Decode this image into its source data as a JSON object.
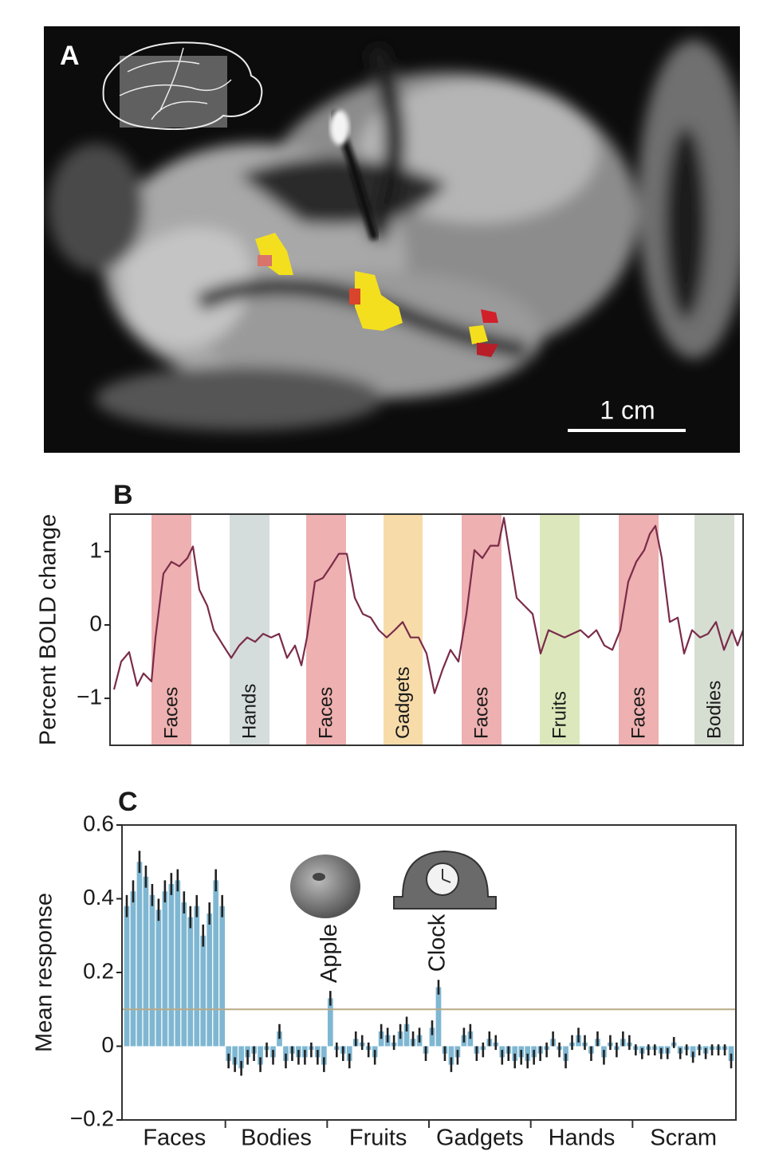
{
  "panel_a": {
    "label": "A",
    "scale_bar": "1 cm"
  },
  "chart_data": [
    {
      "type": "line",
      "panel_label": "B",
      "y_label": "Percent BOLD change",
      "color": "#7a2c4a",
      "xlim": [
        0,
        158.8
      ],
      "ylim": [
        -1.64,
        1.51
      ],
      "yticks": [
        {
          "value": -1,
          "label": "−1"
        },
        0,
        1
      ],
      "x": [
        1,
        2.8,
        4.8,
        6.8,
        8.4,
        10.4,
        11.4,
        13.4,
        15.4,
        17.4,
        19.4,
        20.8,
        22.4,
        24.4,
        26,
        28.4,
        30.4,
        32.4,
        34.4,
        36.4,
        38.4,
        40.4,
        42.4,
        44.4,
        46.4,
        48,
        49.4,
        51.4,
        53.4,
        55.4,
        57.4,
        59.4,
        61.4,
        63.4,
        65.4,
        67.4,
        69.4,
        71.4,
        73.4,
        75.4,
        77.4,
        79.4,
        81.4,
        83.4,
        85.4,
        87.4,
        89.4,
        91.4,
        93.4,
        95.4,
        97.4,
        98.8,
        100.4,
        102,
        104,
        106,
        108,
        110,
        112,
        114,
        116,
        118,
        120,
        122,
        124,
        126,
        128,
        130,
        132,
        134,
        135.4,
        136.8,
        138.4,
        140.4,
        142.4,
        144,
        146,
        148,
        150,
        152,
        154,
        156,
        157.4,
        158.8
      ],
      "values": [
        -0.88,
        -0.5,
        -0.37,
        -0.83,
        -0.66,
        -0.77,
        -0.17,
        0.7,
        0.86,
        0.8,
        0.91,
        1.07,
        0.48,
        0.26,
        -0.07,
        -0.28,
        -0.45,
        -0.28,
        -0.17,
        -0.23,
        -0.12,
        -0.17,
        -0.12,
        -0.45,
        -0.28,
        -0.55,
        -0.17,
        0.59,
        0.64,
        0.8,
        0.97,
        0.97,
        0.37,
        0.15,
        0.1,
        -0.07,
        -0.17,
        -0.07,
        0.04,
        -0.17,
        -0.17,
        -0.39,
        -0.93,
        -0.61,
        -0.34,
        -0.5,
        0.15,
        1.02,
        0.91,
        1.08,
        1.08,
        1.46,
        0.91,
        0.37,
        0.26,
        0.15,
        -0.39,
        -0.07,
        -0.12,
        -0.17,
        -0.12,
        -0.07,
        -0.17,
        -0.07,
        -0.28,
        -0.34,
        -0.07,
        0.59,
        0.86,
        1.02,
        1.24,
        1.35,
        0.91,
        0.04,
        0.1,
        -0.39,
        -0.07,
        -0.17,
        -0.12,
        0.04,
        -0.34,
        -0.07,
        -0.28,
        -0.07
      ],
      "blocks": [
        {
          "label": "Faces",
          "start": 10.4,
          "end": 20.4,
          "color": "#eeb0b0"
        },
        {
          "label": "Hands",
          "start": 30,
          "end": 40,
          "color": "#d5dcdc"
        },
        {
          "label": "Faces",
          "start": 49.2,
          "end": 59.2,
          "color": "#eeb0b0"
        },
        {
          "label": "Gadgets",
          "start": 68.6,
          "end": 78.4,
          "color": "#f7dcaa"
        },
        {
          "label": "Faces",
          "start": 88.2,
          "end": 98.2,
          "color": "#eeb0b0"
        },
        {
          "label": "Fruits",
          "start": 107.8,
          "end": 117.8,
          "color": "#dce8bb"
        },
        {
          "label": "Faces",
          "start": 127.6,
          "end": 137.6,
          "color": "#eeb0b0"
        },
        {
          "label": "Bodies",
          "start": 146.6,
          "end": 156.6,
          "color": "#d6ded2"
        }
      ]
    },
    {
      "type": "bar",
      "panel_label": "C",
      "y_label": "Mean response",
      "color": "#7fb7d2",
      "error_color": "#222222",
      "ylim": [
        -0.2,
        0.6
      ],
      "yticks": [
        {
          "value": -0.2,
          "label": "−0.2"
        },
        0,
        0.2,
        0.4,
        0.6
      ],
      "hline": 0.1,
      "hline_color": "#b9a986",
      "groups": [
        {
          "label": "Faces",
          "values": [
            0.38,
            0.42,
            0.5,
            0.46,
            0.41,
            0.37,
            0.42,
            0.44,
            0.45,
            0.39,
            0.35,
            0.38,
            0.3,
            0.36,
            0.45,
            0.38
          ],
          "errors": [
            0.03,
            0.03,
            0.03,
            0.03,
            0.03,
            0.03,
            0.03,
            0.03,
            0.03,
            0.03,
            0.03,
            0.03,
            0.03,
            0.03,
            0.03,
            0.03
          ],
          "labels": [
            null,
            null,
            null,
            null,
            null,
            null,
            null,
            null,
            null,
            null,
            null,
            null,
            null,
            null,
            null,
            null
          ]
        },
        {
          "label": "Bodies",
          "values": [
            -0.04,
            -0.05,
            -0.06,
            -0.03,
            -0.02,
            -0.05,
            -0.01,
            -0.03,
            0.04,
            -0.04,
            -0.02,
            -0.03,
            -0.03,
            -0.01,
            -0.03,
            -0.05
          ],
          "errors": [
            0.02,
            0.02,
            0.02,
            0.02,
            0.02,
            0.02,
            0.02,
            0.02,
            0.02,
            0.02,
            0.02,
            0.02,
            0.02,
            0.02,
            0.02,
            0.02
          ],
          "labels": [
            null,
            null,
            null,
            null,
            null,
            null,
            null,
            null,
            null,
            null,
            null,
            null,
            null,
            null,
            null,
            null
          ]
        },
        {
          "label": "Fruits",
          "values": [
            0.13,
            -0.01,
            -0.02,
            -0.04,
            0.02,
            0.01,
            -0.01,
            -0.03,
            0.04,
            0.03,
            0.01,
            0.04,
            0.06,
            0.02,
            0.03,
            -0.02
          ],
          "errors": [
            0.02,
            0.02,
            0.02,
            0.02,
            0.02,
            0.02,
            0.02,
            0.02,
            0.02,
            0.02,
            0.02,
            0.02,
            0.02,
            0.02,
            0.02,
            0.02
          ],
          "labels": [
            "Apple",
            null,
            null,
            null,
            null,
            null,
            null,
            null,
            null,
            null,
            null,
            null,
            null,
            null,
            null,
            null
          ]
        },
        {
          "label": "Gadgets",
          "values": [
            0.05,
            0.16,
            -0.02,
            -0.05,
            -0.03,
            0.03,
            0.04,
            -0.02,
            -0.01,
            0.02,
            0.01,
            -0.03,
            -0.02,
            -0.04,
            -0.03,
            -0.04
          ],
          "errors": [
            0.02,
            0.02,
            0.02,
            0.02,
            0.02,
            0.02,
            0.02,
            0.02,
            0.02,
            0.02,
            0.02,
            0.02,
            0.02,
            0.02,
            0.02,
            0.02
          ],
          "labels": [
            null,
            "Clock",
            null,
            null,
            null,
            null,
            null,
            null,
            null,
            null,
            null,
            null,
            null,
            null,
            null,
            null
          ]
        },
        {
          "label": "Hands",
          "values": [
            -0.03,
            -0.02,
            -0.01,
            0.02,
            -0.01,
            -0.04,
            0.01,
            0.03,
            0.01,
            -0.02,
            0.02,
            -0.03,
            0.01,
            -0.01,
            0.02,
            0.01
          ],
          "errors": [
            0.02,
            0.02,
            0.02,
            0.02,
            0.02,
            0.02,
            0.02,
            0.02,
            0.02,
            0.02,
            0.02,
            0.02,
            0.02,
            0.02,
            0.02,
            0.02
          ],
          "labels": [
            null,
            null,
            null,
            null,
            null,
            null,
            null,
            null,
            null,
            null,
            null,
            null,
            null,
            null,
            null,
            null
          ]
        },
        {
          "label": "Scram",
          "values": [
            -0.01,
            -0.02,
            -0.01,
            -0.01,
            -0.02,
            -0.02,
            0.01,
            -0.02,
            -0.01,
            -0.03,
            -0.01,
            -0.02,
            -0.01,
            -0.01,
            -0.01,
            -0.04
          ],
          "errors": [
            0.015,
            0.015,
            0.015,
            0.015,
            0.015,
            0.015,
            0.015,
            0.015,
            0.015,
            0.015,
            0.015,
            0.015,
            0.015,
            0.015,
            0.015,
            0.02
          ],
          "labels": [
            null,
            null,
            null,
            null,
            null,
            null,
            null,
            null,
            null,
            null,
            null,
            null,
            null,
            null,
            null,
            null
          ]
        }
      ]
    }
  ]
}
